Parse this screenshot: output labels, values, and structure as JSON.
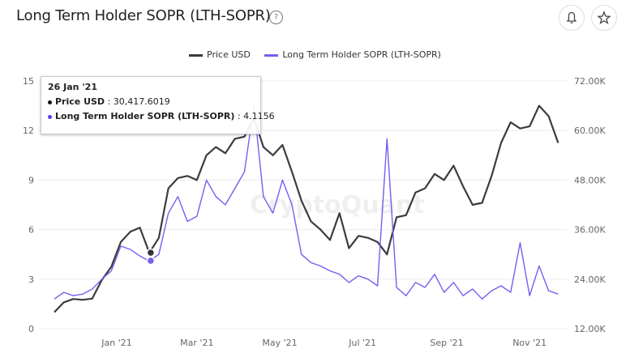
{
  "header": {
    "title": "Long Term Holder SOPR (LTH-SOPR)",
    "help_icon": "?",
    "bell_icon": "bell-icon",
    "star_icon": "star-icon"
  },
  "watermark": "CryptoQuant",
  "tooltip": {
    "date": "26 Jan '21",
    "price_label": "Price USD",
    "price_value": "30,417.6019",
    "sopr_label": "Long Term Holder SOPR (LTH-SOPR)",
    "sopr_value": "4.1156"
  },
  "chart_data": {
    "type": "line",
    "title": "Long Term Holder SOPR (LTH-SOPR)",
    "legend_position": "top-center",
    "x_start": "2020-11-16",
    "x_step_days": 7,
    "x_ticks": [
      {
        "date": "2021-01-01",
        "label": "Jan '21"
      },
      {
        "date": "2021-03-01",
        "label": "Mar '21"
      },
      {
        "date": "2021-05-01",
        "label": "May '21"
      },
      {
        "date": "2021-07-01",
        "label": "Jul '21"
      },
      {
        "date": "2021-09-01",
        "label": "Sep '21"
      },
      {
        "date": "2021-11-01",
        "label": "Nov '21"
      }
    ],
    "y_left": {
      "range": [
        0,
        15
      ],
      "ticks": [
        "0",
        "3",
        "6",
        "9",
        "12",
        "15"
      ],
      "values": [
        0,
        3,
        6,
        9,
        12,
        15
      ]
    },
    "y_right": {
      "range": [
        12000,
        72000
      ],
      "ticks": [
        "12.00K",
        "24.00K",
        "36.00K",
        "48.00K",
        "60.00K",
        "72.00K"
      ],
      "values": [
        12000,
        24000,
        36000,
        48000,
        60000,
        72000
      ]
    },
    "grid": true,
    "series": [
      {
        "name": "Price USD",
        "axis": "right",
        "color": "#3c3c3c",
        "values": [
          16000,
          18400,
          19200,
          19000,
          19300,
          23800,
          27000,
          33000,
          35500,
          36500,
          30400,
          34000,
          46000,
          48500,
          49000,
          48000,
          54000,
          56000,
          54500,
          58000,
          58500,
          63000,
          56000,
          54000,
          56500,
          50000,
          43000,
          38000,
          36000,
          33500,
          40000,
          31500,
          34500,
          34000,
          33000,
          30000,
          39000,
          39500,
          45000,
          46000,
          49500,
          48000,
          51500,
          46500,
          42000,
          42500,
          49000,
          57000,
          62000,
          60500,
          61000,
          66000,
          63500,
          57000
        ]
      },
      {
        "name": "Long Term Holder SOPR (LTH-SOPR)",
        "axis": "left",
        "color": "#7b5cf0",
        "values": [
          1.8,
          2.2,
          2.0,
          2.1,
          2.4,
          3.0,
          3.5,
          5.0,
          4.8,
          4.4,
          4.1,
          4.5,
          7.0,
          8.0,
          6.5,
          6.8,
          9.0,
          8.0,
          7.5,
          8.5,
          9.5,
          13.5,
          8.0,
          7.0,
          9.0,
          7.5,
          4.5,
          4.0,
          3.8,
          3.5,
          3.3,
          2.8,
          3.2,
          3.0,
          2.6,
          11.5,
          2.5,
          2.0,
          2.8,
          2.5,
          3.3,
          2.2,
          2.8,
          2.0,
          2.4,
          1.8,
          2.3,
          2.6,
          2.2,
          5.2,
          2.0,
          3.8,
          2.3,
          2.1
        ]
      }
    ]
  }
}
